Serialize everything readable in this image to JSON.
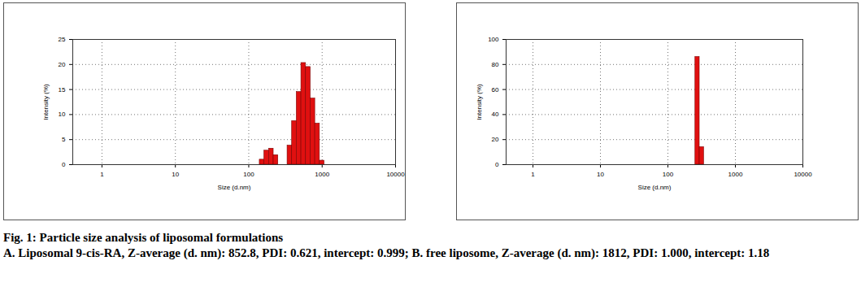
{
  "chart_data": [
    {
      "type": "histogram",
      "xlabel": "Size (d.nm)",
      "ylabel": "Intensity (%)",
      "bins": [
        141,
        163,
        189,
        218,
        252,
        291,
        337,
        389,
        450,
        520,
        601,
        695,
        803,
        928,
        1073
      ],
      "values": [
        1.0,
        2.8,
        3.2,
        1.9,
        0,
        0,
        3.8,
        8.7,
        14.5,
        20.3,
        19.5,
        13.2,
        8.2,
        0.8
      ],
      "color": "#e01010",
      "log": "x",
      "grid": true,
      "xlim": [
        0.4,
        10000
      ],
      "xticks": [
        1,
        10,
        100,
        1000,
        10000
      ],
      "ylim": [
        0,
        25
      ],
      "yticks": [
        0,
        5,
        10,
        15,
        20,
        25
      ]
    },
    {
      "type": "histogram",
      "xlabel": "Size (d.nm)",
      "ylabel": "Intensity (%)",
      "bins": [
        255,
        295,
        342
      ],
      "values": [
        86,
        14
      ],
      "color": "#e01010",
      "log": "x",
      "grid": true,
      "xlim": [
        0.4,
        10000
      ],
      "xticks": [
        1,
        10,
        100,
        1000,
        10000
      ],
      "ylim": [
        0,
        100
      ],
      "yticks": [
        0,
        20,
        40,
        60,
        80,
        100
      ]
    }
  ],
  "caption": {
    "title": "Fig. 1: Particle size analysis of liposomal formulations",
    "text": "A. Liposomal 9-cis-RA, Z-average (d. nm): 852.8, PDI: 0.621, intercept: 0.999; B. free liposome, Z-average (d. nm): 1812, PDI: 1.000, intercept: 1.18"
  }
}
